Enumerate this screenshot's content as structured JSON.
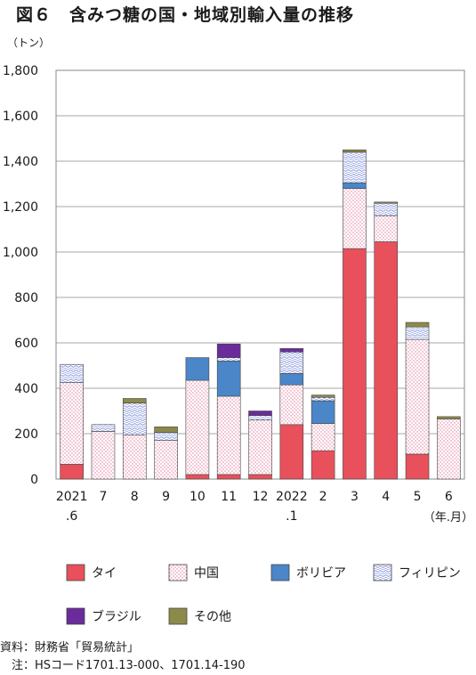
{
  "title": "図６　含みつ糖の国・地域別輸入量の推移",
  "notes": {
    "source": "資料：財務省「貿易統計」",
    "note": "　注：HSコード1701.13-000、1701.14-190"
  },
  "chart_data": {
    "type": "bar",
    "stacked": true,
    "y_unit_label": "（トン）",
    "x_unit_label": "（年.月）",
    "ylim": [
      0,
      1800
    ],
    "y_ticks": [
      "0",
      "200",
      "400",
      "600",
      "800",
      "1,000",
      "1,200",
      "1,400",
      "1,600",
      "1,800"
    ],
    "grid": true,
    "legend_position": "bottom",
    "categories": [
      [
        "2021",
        ".6"
      ],
      [
        "7"
      ],
      [
        "8"
      ],
      [
        "9"
      ],
      [
        "10"
      ],
      [
        "11"
      ],
      [
        "12"
      ],
      [
        "2022",
        ".1"
      ],
      [
        "2"
      ],
      [
        "3"
      ],
      [
        "4"
      ],
      [
        "5"
      ],
      [
        "6"
      ]
    ],
    "series": [
      {
        "name": "タイ",
        "color": "#e8505b",
        "pattern": "solid",
        "values": [
          65,
          0,
          0,
          0,
          20,
          20,
          20,
          240,
          125,
          1015,
          1045,
          110,
          0
        ]
      },
      {
        "name": "中国",
        "color": "#ffffff",
        "pattern": "pink-dots",
        "values": [
          360,
          210,
          195,
          170,
          415,
          345,
          240,
          175,
          120,
          265,
          115,
          505,
          265
        ]
      },
      {
        "name": "ボリビア",
        "color": "#4a86c8",
        "pattern": "solid",
        "values": [
          0,
          0,
          0,
          0,
          100,
          155,
          0,
          50,
          100,
          25,
          0,
          0,
          0
        ]
      },
      {
        "name": "フィリピン",
        "color": "#ffffff",
        "pattern": "blue-waves",
        "values": [
          80,
          30,
          140,
          35,
          0,
          15,
          20,
          95,
          15,
          135,
          55,
          55,
          0
        ]
      },
      {
        "name": "ブラジル",
        "color": "#6a2c9c",
        "pattern": "solid",
        "values": [
          0,
          0,
          0,
          0,
          0,
          60,
          20,
          15,
          0,
          0,
          0,
          0,
          0
        ]
      },
      {
        "name": "その他",
        "color": "#8c8a4a",
        "pattern": "solid",
        "values": [
          0,
          0,
          20,
          25,
          0,
          0,
          0,
          0,
          10,
          10,
          5,
          20,
          10
        ]
      }
    ]
  }
}
